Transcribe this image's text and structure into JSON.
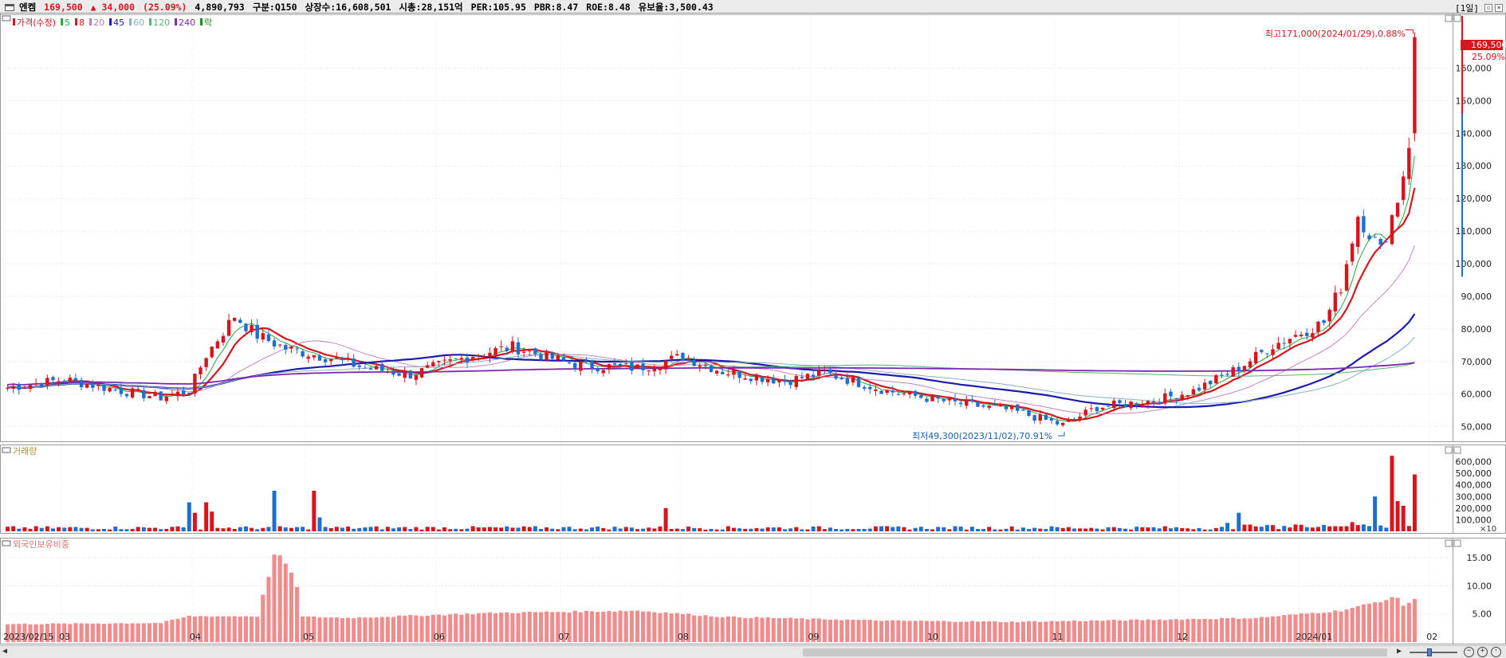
{
  "header": {
    "stock_name": "엔켐",
    "price": "169,500",
    "change": "▲ 34,000",
    "change_pct": "(25.09%)",
    "volume": "4,890,793",
    "category": "구분:Q150",
    "listed_shares": "상장수:16,608,501",
    "market_cap": "시총:28,151억",
    "per": "PER:105.95",
    "pbr": "PBR:8.47",
    "roe": "ROE:8.48",
    "reserve_ratio": "유보율:3,500.43",
    "period": "[1일]",
    "up_color": "#d8141c",
    "down_color": "#1e6fd0"
  },
  "price_panel": {
    "legend": [
      {
        "label": "가격(수정)",
        "color": "#d8141c"
      },
      {
        "label": "5",
        "color": "#22a83a"
      },
      {
        "label": "8",
        "color": "#d8141c"
      },
      {
        "label": "20",
        "color": "#c07ab8"
      },
      {
        "label": "45",
        "color": "#1a1ab0"
      },
      {
        "label": "60",
        "color": "#8ab0c0"
      },
      {
        "label": "120",
        "color": "#5ab07a"
      },
      {
        "label": "240",
        "color": "#7a2ab0"
      },
      {
        "label": "락",
        "color": "#1a8a1a"
      }
    ],
    "high_annotation": "최고171,000(2024/01/29),0.88%",
    "low_annotation": "최저49,300(2023/11/02),70.91%",
    "last_price_tag": "169,500",
    "last_pct_tag": "25.09%"
  },
  "volume_panel": {
    "title": "거래량",
    "unit": "×10"
  },
  "foreign_panel": {
    "title": "외국인보유비중"
  },
  "x_axis": {
    "labels": [
      "2023/02/15",
      "03",
      "04",
      "05",
      "06",
      "07",
      "08",
      "09",
      "10",
      "11",
      "12",
      "2024/01",
      "02"
    ]
  },
  "chart_data": [
    {
      "type": "candlestick",
      "title": "가격(수정)",
      "x_start": "2023/02/15",
      "x_end": "2024/01/29",
      "ylim": [
        46000,
        176000
      ],
      "y_ticks": [
        50000,
        60000,
        70000,
        80000,
        90000,
        100000,
        110000,
        120000,
        130000,
        140000,
        150000,
        160000
      ],
      "y_tick_labels": [
        "50,000",
        "60,000",
        "70,000",
        "80,000",
        "90,000",
        "100,000",
        "110,000",
        "120,000",
        "130,000",
        "140,000",
        "150,000",
        "160,000"
      ],
      "close_anchors": [
        [
          "2023/02/15",
          62000
        ],
        [
          "2023/03/01",
          64500
        ],
        [
          "2023/03/15",
          61000
        ],
        [
          "2023/03/25",
          59000
        ],
        [
          "2023/03/31",
          61000
        ],
        [
          "2023/04/05",
          72000
        ],
        [
          "2023/04/12",
          84000
        ],
        [
          "2023/04/18",
          78000
        ],
        [
          "2023/04/25",
          74000
        ],
        [
          "2023/05/05",
          71000
        ],
        [
          "2023/05/15",
          68000
        ],
        [
          "2023/05/25",
          66000
        ],
        [
          "2023/06/10",
          72000
        ],
        [
          "2023/06/20",
          74500
        ],
        [
          "2023/07/05",
          69000
        ],
        [
          "2023/07/20",
          68000
        ],
        [
          "2023/08/01",
          71500
        ],
        [
          "2023/08/10",
          67000
        ],
        [
          "2023/08/25",
          64000
        ],
        [
          "2023/09/05",
          66500
        ],
        [
          "2023/09/20",
          61000
        ],
        [
          "2023/10/05",
          57500
        ],
        [
          "2023/10/20",
          55000
        ],
        [
          "2023/11/02",
          50500
        ],
        [
          "2023/11/10",
          56000
        ],
        [
          "2023/11/25",
          58000
        ],
        [
          "2023/12/05",
          61000
        ],
        [
          "2023/12/15",
          68000
        ],
        [
          "2023/12/25",
          75000
        ],
        [
          "2024/01/05",
          82000
        ],
        [
          "2024/01/10",
          93000
        ],
        [
          "2024/01/15",
          115000
        ],
        [
          "2024/01/20",
          104000
        ],
        [
          "2024/01/24",
          120000
        ],
        [
          "2024/01/26",
          135500
        ],
        [
          "2024/01/29",
          169500
        ]
      ],
      "series": [
        {
          "name": "5",
          "color": "#22a83a"
        },
        {
          "name": "8",
          "color": "#d8141c"
        },
        {
          "name": "20",
          "color": "#c07ab8"
        },
        {
          "name": "45",
          "color": "#1a1ab0"
        },
        {
          "name": "60",
          "color": "#8ab0c0"
        },
        {
          "name": "120",
          "color": "#5ab07a"
        },
        {
          "name": "240",
          "color": "#7a2ab0"
        }
      ]
    },
    {
      "type": "bar",
      "title": "거래량",
      "unit": "×10",
      "ylim": [
        0,
        720000
      ],
      "y_ticks": [
        100000,
        200000,
        300000,
        400000,
        500000,
        600000
      ],
      "y_tick_labels": [
        "100,000",
        "200,000",
        "300,000",
        "400,000",
        "500,000",
        "600,000"
      ],
      "peaks": [
        [
          "2023/03/31",
          250000
        ],
        [
          "2023/04/03",
          160000
        ],
        [
          "2023/04/05",
          250000
        ],
        [
          "2023/04/06",
          170000
        ],
        [
          "2023/04/21",
          350000
        ],
        [
          "2023/05/02",
          350000
        ],
        [
          "2023/05/03",
          120000
        ],
        [
          "2023/07/27",
          200000
        ],
        [
          "2023/12/15",
          160000
        ],
        [
          "2024/01/18",
          300000
        ],
        [
          "2024/01/23",
          650000
        ],
        [
          "2024/01/24",
          260000
        ],
        [
          "2024/01/25",
          220000
        ],
        [
          "2024/01/29",
          490000
        ]
      ]
    },
    {
      "type": "bar",
      "title": "외국인보유비중",
      "ylim": [
        0,
        18
      ],
      "y_ticks": [
        5,
        10,
        15
      ],
      "y_tick_labels": [
        "5.00",
        "10.00",
        "15.00"
      ],
      "anchors": [
        [
          "2023/02/15",
          3.2
        ],
        [
          "2023/03/25",
          3.4
        ],
        [
          "2023/03/31",
          4.6
        ],
        [
          "2023/04/18",
          4.6
        ],
        [
          "2023/04/21",
          15.5
        ],
        [
          "2023/04/24",
          15.0
        ],
        [
          "2023/04/25",
          14.0
        ],
        [
          "2023/04/26",
          12.0
        ],
        [
          "2023/04/27",
          10.0
        ],
        [
          "2023/04/28",
          4.5
        ],
        [
          "2023/05/10",
          4.3
        ],
        [
          "2023/06/15",
          5.2
        ],
        [
          "2023/07/20",
          5.6
        ],
        [
          "2023/08/10",
          4.5
        ],
        [
          "2023/09/20",
          3.8
        ],
        [
          "2023/10/20",
          3.6
        ],
        [
          "2023/11/20",
          3.9
        ],
        [
          "2023/12/20",
          4.3
        ],
        [
          "2024/01/10",
          5.6
        ],
        [
          "2024/01/24",
          8.0
        ],
        [
          "2024/01/25",
          6.5
        ],
        [
          "2024/01/29",
          7.5
        ]
      ]
    }
  ]
}
